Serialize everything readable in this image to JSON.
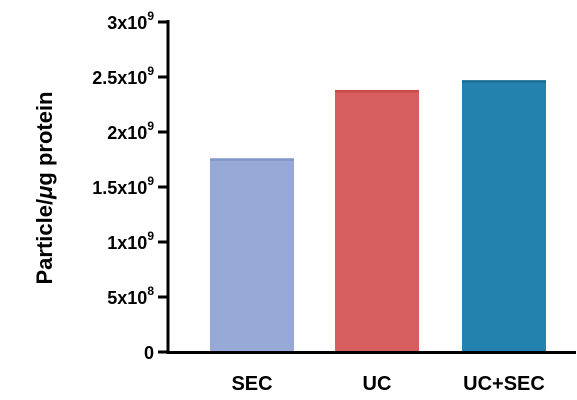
{
  "chart_data": {
    "type": "bar",
    "ylabel_prefix": "Particle/",
    "ylabel_mu": "μ",
    "ylabel_suffix": "g protein",
    "categories": [
      "SEC",
      "UC",
      "UC+SEC"
    ],
    "values": [
      1750000000.0,
      2370000000.0,
      2460000000.0
    ],
    "colors": [
      "#97a9d6",
      "#d65e5e",
      "#2483ae"
    ],
    "cap_colors": [
      "#8096c8",
      "#c84c4c",
      "#1b6e96"
    ],
    "ylim": [
      0,
      3000000000.0
    ],
    "yticks": [
      {
        "value": 0,
        "base": "0",
        "exp": ""
      },
      {
        "value": 500000000.0,
        "base": "5x10",
        "exp": "8"
      },
      {
        "value": 1000000000.0,
        "base": "1x10",
        "exp": "9"
      },
      {
        "value": 1500000000.0,
        "base": "1.5x10",
        "exp": "9"
      },
      {
        "value": 2000000000.0,
        "base": "2x10",
        "exp": "9"
      },
      {
        "value": 2500000000.0,
        "base": "2.5x10",
        "exp": "9"
      },
      {
        "value": 3000000000.0,
        "base": "3x10",
        "exp": "9"
      }
    ],
    "grid": false,
    "legend": "none"
  }
}
